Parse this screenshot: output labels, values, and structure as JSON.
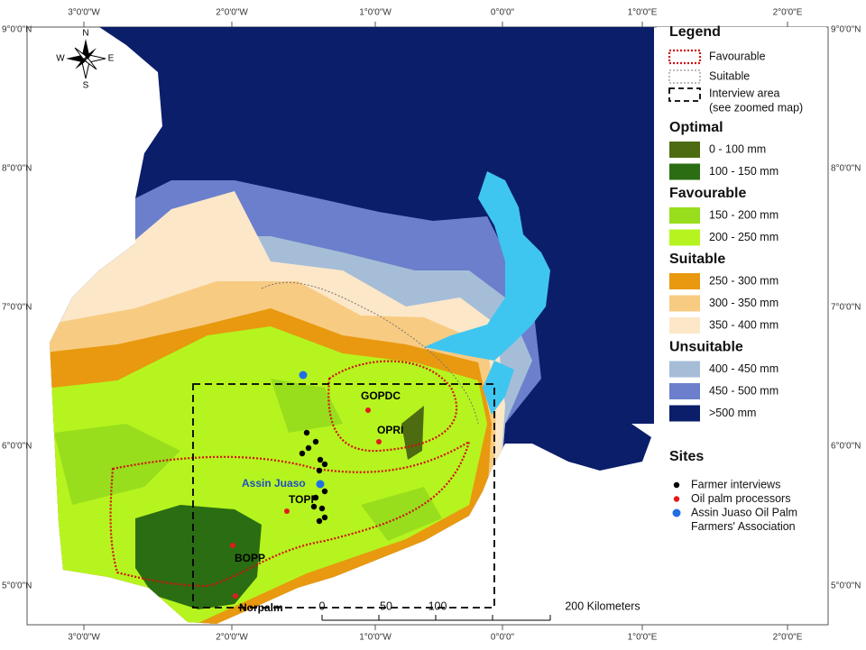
{
  "map": {
    "lon_labels": [
      "3°0'0\"W",
      "2°0'0\"W",
      "1°0'0\"W",
      "0°0'0\"",
      "1°0'0\"E",
      "2°0'0\"E"
    ],
    "lat_labels": [
      "9°0'0\"N",
      "8°0'0\"N",
      "7°0'0\"N",
      "6°0'0\"N",
      "5°0'0\"N"
    ],
    "compass": {
      "n": "N",
      "s": "S",
      "e": "E",
      "w": "W"
    },
    "site_labels": [
      "GOPDC",
      "OPRI",
      "Assin Juaso",
      "TOPP",
      "BOPP",
      "Norpalm"
    ],
    "scale": {
      "ticks": [
        "0",
        "50",
        "100"
      ],
      "label": "200 Kilometers"
    }
  },
  "legend": {
    "title": "Legend",
    "boundaries": [
      "Favourable",
      "Suitable",
      "Interview area",
      "(see zoomed map)"
    ],
    "classes": [
      {
        "name": "Optimal",
        "items": [
          {
            "label": "0 - 100 mm",
            "color": "#4d6b10"
          },
          {
            "label": "100 - 150 mm",
            "color": "#2b6d12"
          }
        ]
      },
      {
        "name": "Favourable",
        "items": [
          {
            "label": "150 - 200 mm",
            "color": "#98de1c"
          },
          {
            "label": "200 - 250 mm",
            "color": "#b6f41f"
          }
        ]
      },
      {
        "name": "Suitable",
        "items": [
          {
            "label": "250 - 300 mm",
            "color": "#e8990f"
          },
          {
            "label": "300 - 350 mm",
            "color": "#f8cb82"
          },
          {
            "label": "350 - 400 mm",
            "color": "#fce7c8"
          }
        ]
      },
      {
        "name": "Unsuitable",
        "items": [
          {
            "label": "400 - 450 mm",
            "color": "#a6bdd8"
          },
          {
            "label": "450 - 500 mm",
            "color": "#6b7fcc"
          },
          {
            "label": ">500 mm",
            "color": "#0b1e6a"
          }
        ]
      }
    ],
    "sites": {
      "title": "Sites",
      "items": [
        {
          "label": [
            "Farmer interviews"
          ],
          "color": "#000000"
        },
        {
          "label": [
            "Oil palm processors"
          ],
          "color": "#e31a1c"
        },
        {
          "label": [
            "Assin Juaso Oil Palm",
            "Farmers' Association"
          ],
          "color": "#1f6fe5"
        }
      ]
    }
  }
}
